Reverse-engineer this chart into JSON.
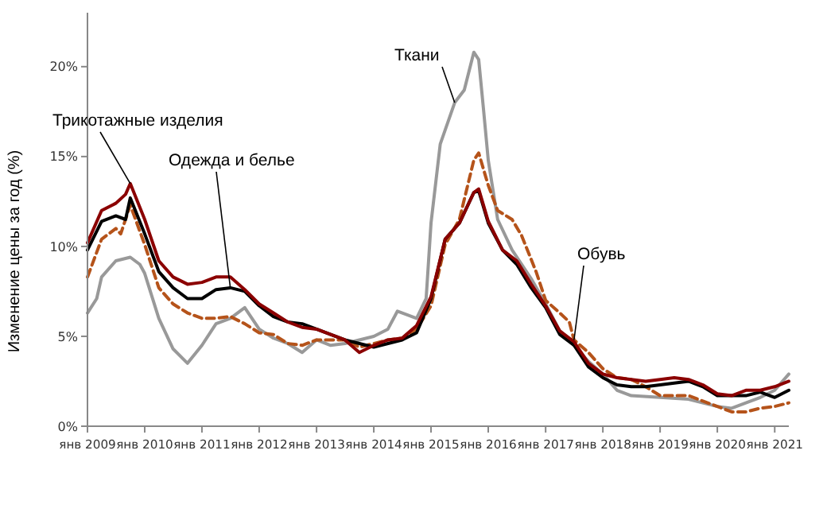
{
  "chart_data": {
    "type": "line",
    "ylabel": "Изменение цены за год (%)",
    "ylim": [
      0,
      23
    ],
    "yticks": [
      {
        "value": 0,
        "label": "0%"
      },
      {
        "value": 5,
        "label": "5%"
      },
      {
        "value": 10,
        "label": "10%"
      },
      {
        "value": 15,
        "label": "15%"
      },
      {
        "value": 20,
        "label": "20%"
      }
    ],
    "xlim": [
      "2009-01",
      "2021-04"
    ],
    "xticks": [
      {
        "value": "2009-01",
        "label": "янв 2009"
      },
      {
        "value": "2010-01",
        "label": "янв 2010"
      },
      {
        "value": "2011-01",
        "label": "янв 2011"
      },
      {
        "value": "2012-01",
        "label": "янв 2012"
      },
      {
        "value": "2013-01",
        "label": "янв 2013"
      },
      {
        "value": "2014-01",
        "label": "янв 2014"
      },
      {
        "value": "2015-01",
        "label": "янв 2015"
      },
      {
        "value": "2016-01",
        "label": "янв 2016"
      },
      {
        "value": "2017-01",
        "label": "янв 2017"
      },
      {
        "value": "2018-01",
        "label": "янв 2018"
      },
      {
        "value": "2019-01",
        "label": "янв 2019"
      },
      {
        "value": "2020-01",
        "label": "янв 2020"
      },
      {
        "value": "2021-01",
        "label": "янв 2021"
      }
    ],
    "grid": false,
    "legend": false,
    "marker": "none",
    "series": [
      {
        "name": "Ткани",
        "color": "#999999",
        "line_style": "solid",
        "x": [
          "2009-01",
          "2009-03",
          "2009-04",
          "2009-07",
          "2009-10",
          "2009-12",
          "2010-01",
          "2010-04",
          "2010-07",
          "2010-10",
          "2011-01",
          "2011-04",
          "2011-07",
          "2011-10",
          "2012-01",
          "2012-04",
          "2012-07",
          "2012-10",
          "2013-01",
          "2013-04",
          "2013-07",
          "2013-10",
          "2014-01",
          "2014-04",
          "2014-06",
          "2014-10",
          "2014-12",
          "2015-01",
          "2015-03",
          "2015-06",
          "2015-08",
          "2015-10",
          "2015-11",
          "2015-12",
          "2016-01",
          "2016-03",
          "2016-06",
          "2016-10",
          "2017-01",
          "2017-04",
          "2017-07",
          "2017-10",
          "2018-01",
          "2018-04",
          "2018-07",
          "2019-01",
          "2019-07",
          "2020-01",
          "2020-04",
          "2020-07",
          "2020-10",
          "2021-01",
          "2021-04"
        ],
        "values": [
          6.3,
          7.1,
          8.3,
          9.2,
          9.4,
          9.0,
          8.5,
          6.0,
          4.3,
          3.5,
          4.5,
          5.7,
          6.0,
          6.6,
          5.4,
          4.9,
          4.6,
          4.1,
          4.8,
          4.5,
          4.6,
          4.8,
          5.0,
          5.4,
          6.4,
          6.0,
          7.1,
          11.3,
          15.7,
          18.0,
          18.7,
          20.8,
          20.4,
          17.7,
          14.8,
          11.5,
          9.8,
          8.2,
          6.8,
          5.3,
          4.5,
          3.6,
          2.9,
          2.0,
          1.7,
          1.6,
          1.5,
          1.1,
          1.0,
          1.3,
          1.6,
          2.0,
          2.9
        ]
      },
      {
        "name": "Обувь",
        "color": "#b5531a",
        "line_style": "dashed",
        "x": [
          "2009-01",
          "2009-04",
          "2009-07",
          "2009-08",
          "2009-10",
          "2010-01",
          "2010-04",
          "2010-07",
          "2010-10",
          "2011-01",
          "2011-04",
          "2011-07",
          "2011-10",
          "2012-01",
          "2012-04",
          "2012-07",
          "2012-10",
          "2013-01",
          "2013-04",
          "2013-07",
          "2013-10",
          "2014-01",
          "2014-04",
          "2014-07",
          "2014-10",
          "2015-01",
          "2015-04",
          "2015-07",
          "2015-10",
          "2015-11",
          "2016-01",
          "2016-03",
          "2016-06",
          "2016-08",
          "2016-11",
          "2017-01",
          "2017-04",
          "2017-06",
          "2017-07",
          "2017-10",
          "2018-01",
          "2018-04",
          "2018-07",
          "2018-10",
          "2019-01",
          "2019-04",
          "2019-07",
          "2019-10",
          "2020-01",
          "2020-04",
          "2020-07",
          "2020-10",
          "2021-01",
          "2021-04"
        ],
        "values": [
          8.3,
          10.4,
          11.0,
          10.7,
          12.3,
          10.1,
          7.7,
          6.8,
          6.3,
          6.0,
          6.0,
          6.1,
          5.7,
          5.2,
          5.1,
          4.6,
          4.5,
          4.8,
          4.8,
          4.8,
          4.4,
          4.6,
          4.8,
          4.9,
          5.4,
          6.7,
          10.1,
          11.5,
          14.8,
          15.2,
          13.4,
          12.0,
          11.5,
          10.6,
          8.6,
          7.0,
          6.3,
          5.8,
          4.8,
          4.1,
          3.2,
          2.7,
          2.6,
          2.2,
          1.7,
          1.7,
          1.7,
          1.4,
          1.1,
          0.8,
          0.8,
          1.0,
          1.1,
          1.3
        ]
      },
      {
        "name": "Одежда и белье",
        "color": "#000000",
        "line_style": "solid",
        "x": [
          "2009-01",
          "2009-04",
          "2009-07",
          "2009-09",
          "2009-10",
          "2010-01",
          "2010-04",
          "2010-07",
          "2010-10",
          "2011-01",
          "2011-04",
          "2011-07",
          "2011-10",
          "2012-01",
          "2012-04",
          "2012-07",
          "2012-10",
          "2013-01",
          "2013-04",
          "2013-07",
          "2013-10",
          "2014-01",
          "2014-07",
          "2014-10",
          "2015-01",
          "2015-04",
          "2015-07",
          "2015-10",
          "2015-11",
          "2016-01",
          "2016-04",
          "2016-07",
          "2016-10",
          "2017-01",
          "2017-04",
          "2017-07",
          "2017-10",
          "2018-01",
          "2018-04",
          "2018-07",
          "2018-10",
          "2019-01",
          "2019-04",
          "2019-07",
          "2019-10",
          "2020-01",
          "2020-04",
          "2020-07",
          "2020-10",
          "2021-01",
          "2021-04"
        ],
        "values": [
          9.8,
          11.4,
          11.7,
          11.5,
          12.7,
          10.7,
          8.6,
          7.7,
          7.1,
          7.1,
          7.6,
          7.7,
          7.5,
          6.7,
          6.1,
          5.8,
          5.7,
          5.4,
          5.1,
          4.8,
          4.6,
          4.4,
          4.8,
          5.2,
          7.1,
          10.4,
          11.3,
          13.0,
          13.1,
          11.3,
          9.8,
          9.0,
          7.7,
          6.6,
          5.1,
          4.5,
          3.3,
          2.7,
          2.3,
          2.2,
          2.2,
          2.3,
          2.4,
          2.5,
          2.2,
          1.7,
          1.7,
          1.7,
          1.9,
          1.6,
          2.0
        ]
      },
      {
        "name": "Трикотажные изделия",
        "color": "#8b0000",
        "line_style": "solid",
        "x": [
          "2009-01",
          "2009-04",
          "2009-07",
          "2009-09",
          "2009-10",
          "2010-01",
          "2010-04",
          "2010-07",
          "2010-10",
          "2011-01",
          "2011-04",
          "2011-07",
          "2011-10",
          "2012-01",
          "2012-04",
          "2012-07",
          "2012-10",
          "2013-01",
          "2013-04",
          "2013-07",
          "2013-10",
          "2014-01",
          "2014-04",
          "2014-07",
          "2014-10",
          "2015-01",
          "2015-04",
          "2015-07",
          "2015-10",
          "2015-11",
          "2016-01",
          "2016-04",
          "2016-07",
          "2016-10",
          "2017-01",
          "2017-04",
          "2017-07",
          "2017-10",
          "2018-01",
          "2018-04",
          "2018-07",
          "2018-10",
          "2019-01",
          "2019-04",
          "2019-07",
          "2019-10",
          "2020-01",
          "2020-04",
          "2020-07",
          "2020-10",
          "2021-01",
          "2021-04"
        ],
        "values": [
          10.2,
          12.0,
          12.4,
          12.9,
          13.5,
          11.5,
          9.2,
          8.3,
          7.9,
          8.0,
          8.3,
          8.3,
          7.6,
          6.8,
          6.3,
          5.8,
          5.5,
          5.4,
          5.1,
          4.8,
          4.1,
          4.5,
          4.8,
          4.9,
          5.6,
          7.2,
          10.4,
          11.3,
          13.0,
          13.2,
          11.4,
          9.8,
          9.2,
          7.9,
          6.7,
          5.3,
          4.7,
          3.5,
          2.9,
          2.7,
          2.6,
          2.5,
          2.6,
          2.7,
          2.6,
          2.3,
          1.8,
          1.7,
          2.0,
          2.0,
          2.2,
          2.5
        ]
      }
    ]
  }
}
